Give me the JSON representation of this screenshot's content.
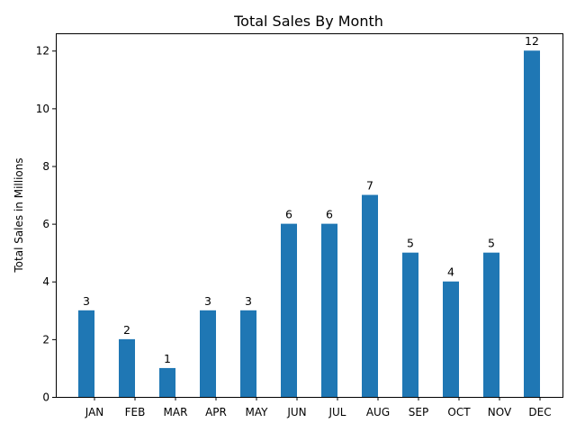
{
  "chart_data": {
    "type": "bar",
    "title": "Total Sales By Month",
    "xlabel": "",
    "ylabel": "Total Sales in Millions",
    "categories": [
      "JAN",
      "FEB",
      "MAR",
      "APR",
      "MAY",
      "JUN",
      "JUL",
      "AUG",
      "SEP",
      "OCT",
      "NOV",
      "DEC"
    ],
    "values": [
      3,
      2,
      1,
      3,
      3,
      6,
      6,
      7,
      5,
      4,
      5,
      12
    ],
    "ylim": [
      0,
      12.6
    ],
    "yticks": [
      0,
      2,
      4,
      6,
      8,
      10,
      12
    ],
    "grid": false,
    "bar_color": "#1f77b4",
    "data_labels": true
  }
}
